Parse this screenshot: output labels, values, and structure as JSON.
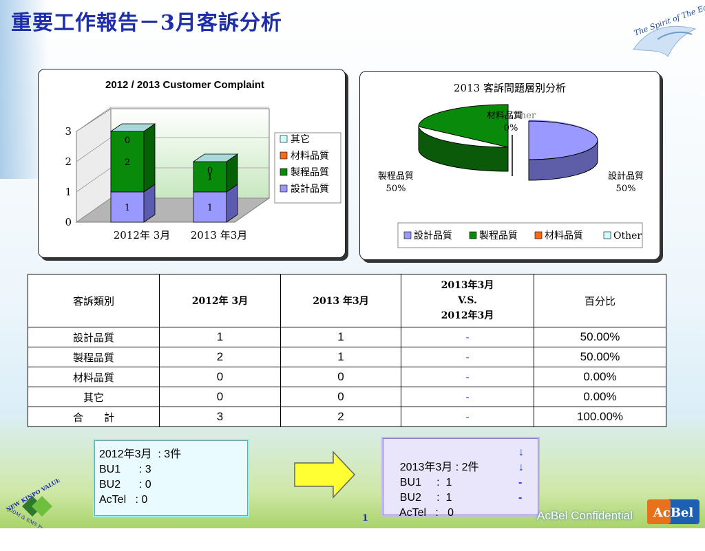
{
  "title": "重要工作報告－3月客訴分析",
  "logo_text": "The Spirit of The Eagle",
  "bar_chart": {
    "title": "2012 / 2013 Customer Complaint",
    "yticks": [
      "0",
      "1",
      "2",
      "3"
    ],
    "categories": [
      "2012年 3月",
      "2013 年3月"
    ],
    "legend": [
      "其它",
      "材料品質",
      "製程品質",
      "設計品質"
    ],
    "labels_2012": [
      "1",
      "2",
      "0"
    ],
    "labels_2013": [
      "1",
      "1",
      "0"
    ]
  },
  "pie_chart": {
    "title": "2013 客訴問題層別分析",
    "label_design": "設計品質",
    "pct_design": "50%",
    "label_process": "製程品質",
    "pct_process": "50%",
    "label_top": "材料品質",
    "label_top_other": "Other",
    "pct_top": "0%",
    "legend": [
      "設計品質",
      "製程品質",
      "材料品質",
      "Other"
    ]
  },
  "chart_data": [
    {
      "type": "bar",
      "title": "2012 / 2013 Customer Complaint",
      "categories": [
        "2012年 3月",
        "2013 年3月"
      ],
      "series": [
        {
          "name": "設計品質",
          "values": [
            1,
            1
          ],
          "color": "#9999ff"
        },
        {
          "name": "製程品質",
          "values": [
            2,
            1
          ],
          "color": "#0a8a0a"
        },
        {
          "name": "材料品質",
          "values": [
            0,
            0
          ],
          "color": "#ff6a13"
        },
        {
          "name": "其它",
          "values": [
            0,
            0
          ],
          "color": "#ccffff"
        }
      ],
      "ylim": [
        0,
        3
      ],
      "stacked": true,
      "legend_position": "right"
    },
    {
      "type": "pie",
      "title": "2013 客訴問題層別分析",
      "labels": [
        "設計品質",
        "製程品質",
        "材料品質",
        "Other"
      ],
      "values": [
        50,
        50,
        0,
        0
      ],
      "colors": [
        "#9999ff",
        "#0a8a0a",
        "#ff6a13",
        "#ccffff"
      ],
      "legend_position": "bottom"
    }
  ],
  "table": {
    "headers": [
      "客訴類別",
      "2012年 3月",
      "2013 年3月",
      "2013年3月",
      "V.S.",
      "2012年3月",
      "百分比"
    ],
    "rows": [
      {
        "cat": "設計品質",
        "a": "1",
        "b": "1",
        "cmp": "-",
        "pct": "50.00%"
      },
      {
        "cat": "製程品質",
        "a": "2",
        "b": "1",
        "cmp": "-",
        "pct": "50.00%"
      },
      {
        "cat": "材料品質",
        "a": "0",
        "b": "0",
        "cmp": "-",
        "pct": "0.00%"
      },
      {
        "cat": "其它",
        "a": "0",
        "b": "0",
        "cmp": "-",
        "pct": "0.00%"
      },
      {
        "cat": "合　　計",
        "a": "3",
        "b": "2",
        "cmp": "-",
        "pct": "100.00%"
      }
    ]
  },
  "note_left": [
    "2012年3月  : 3件",
    "BU1      : 3",
    "BU2      : 0",
    "AcTel   : 0"
  ],
  "note_right": {
    "lines": [
      "2013年3月 : 2件",
      "BU1     :  1",
      "BU2     :  1",
      "AcTel   :   0"
    ],
    "arrows": [
      "↓",
      "↓",
      "-",
      "-"
    ]
  },
  "footer": {
    "confidential": "AcBel Confidential",
    "page": "1",
    "brand": "AcBel",
    "kinpo": "NEW KINPO VALUE",
    "kinpo_sub": "ODM & EMS Partner"
  }
}
